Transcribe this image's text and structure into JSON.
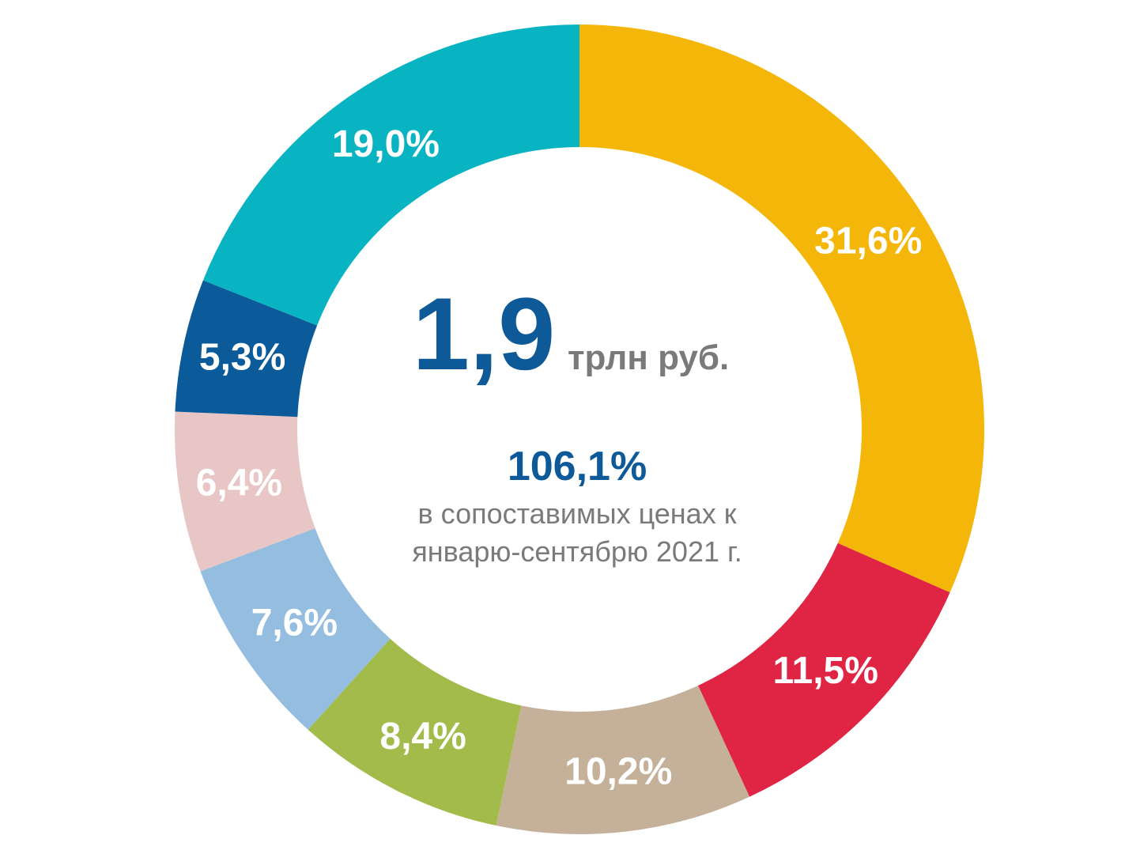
{
  "chart_data": {
    "type": "pie",
    "subtype": "donut",
    "start": "top",
    "direction": "clockwise",
    "slices": [
      {
        "label": "31,6%",
        "value": 31.6,
        "color": "#f5b60a"
      },
      {
        "label": "11,5%",
        "value": 11.5,
        "color": "#e02443"
      },
      {
        "label": "10,2%",
        "value": 10.2,
        "color": "#c5b09a"
      },
      {
        "label": "8,4%",
        "value": 8.4,
        "color": "#a2bb4b"
      },
      {
        "label": "7,6%",
        "value": 7.6,
        "color": "#94bde0"
      },
      {
        "label": "6,4%",
        "value": 6.4,
        "color": "#e8c6c6"
      },
      {
        "label": "5,3%",
        "value": 5.3,
        "color": "#0b5b9b"
      },
      {
        "label": "19,0%",
        "value": 19.0,
        "color": "#08b4c1"
      }
    ]
  },
  "center": {
    "value": "1,9",
    "unit": "трлн руб.",
    "growth": "106,1%",
    "note_line1": "в сопоставимых ценах к",
    "note_line2": "январю-сентябрю 2021 г."
  },
  "colors": {
    "primary_text": "#0e5a98",
    "secondary_text": "#7a7a7a"
  }
}
